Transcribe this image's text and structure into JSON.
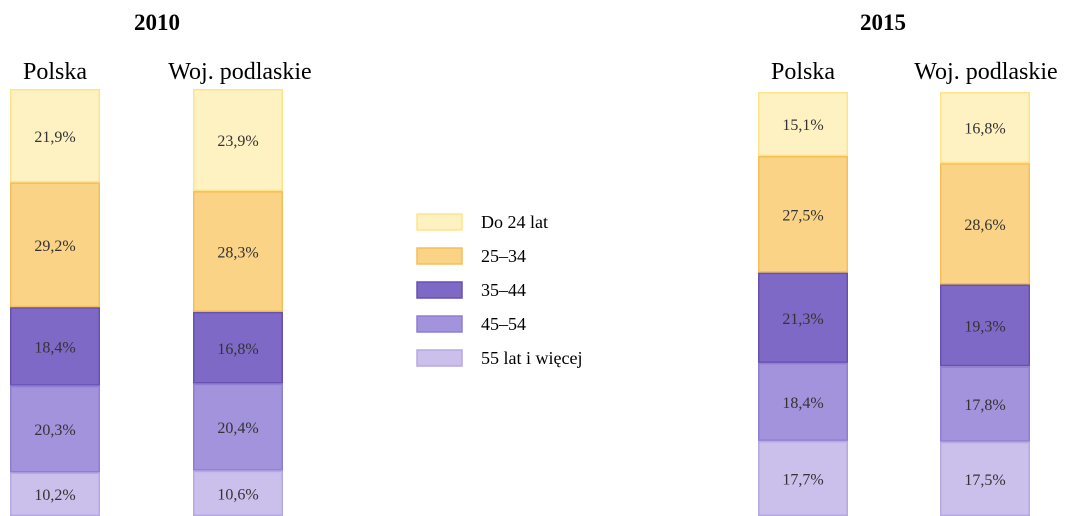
{
  "legend": [
    {
      "label": "Do 24 lat",
      "color": "#FFF2C2",
      "stroke": "#FFE38A"
    },
    {
      "label": "25–34",
      "color": "#FAD386",
      "stroke": "#F2C056"
    },
    {
      "label": "35–44",
      "color": "#7E69C6",
      "stroke": "#6650B2"
    },
    {
      "label": "45–54",
      "color": "#A293DC",
      "stroke": "#8F7ED2"
    },
    {
      "label": "55 lat i więcej",
      "color": "#CBBFEB",
      "stroke": "#B6A8E0"
    }
  ],
  "chart_data": [
    {
      "type": "bar",
      "stacked": true,
      "title": "2010",
      "categories": [
        "Polska",
        "Woj. podlaskie"
      ],
      "unit": "%",
      "series": [
        {
          "name": "Do 24 lat",
          "values": [
            21.9,
            23.9
          ],
          "labels": [
            "21,9%",
            "23,9%"
          ]
        },
        {
          "name": "25–34",
          "values": [
            29.2,
            28.3
          ],
          "labels": [
            "29,2%",
            "28,3%"
          ]
        },
        {
          "name": "35–44",
          "values": [
            18.4,
            16.8
          ],
          "labels": [
            "18,4%",
            "16,8%"
          ]
        },
        {
          "name": "45–54",
          "values": [
            20.3,
            20.4
          ],
          "labels": [
            "20,3%",
            "20,4%"
          ]
        },
        {
          "name": "55 lat i więcej",
          "values": [
            10.2,
            10.6
          ],
          "labels": [
            "10,2%",
            "10,6%"
          ]
        }
      ]
    },
    {
      "type": "bar",
      "stacked": true,
      "title": "2015",
      "categories": [
        "Polska",
        "Woj. podlaskie"
      ],
      "unit": "%",
      "series": [
        {
          "name": "Do 24 lat",
          "values": [
            15.1,
            16.8
          ],
          "labels": [
            "15,1%",
            "16,8%"
          ]
        },
        {
          "name": "25–34",
          "values": [
            27.5,
            28.6
          ],
          "labels": [
            "27,5%",
            "28,6%"
          ]
        },
        {
          "name": "35–44",
          "values": [
            21.3,
            19.3
          ],
          "labels": [
            "21,3%",
            "19,3%"
          ]
        },
        {
          "name": "45–54",
          "values": [
            18.4,
            17.8
          ],
          "labels": [
            "18,4%",
            "17,8%"
          ]
        },
        {
          "name": "55 lat i więcej",
          "values": [
            17.7,
            17.5
          ],
          "labels": [
            "17,7%",
            "17,5%"
          ]
        }
      ]
    }
  ]
}
